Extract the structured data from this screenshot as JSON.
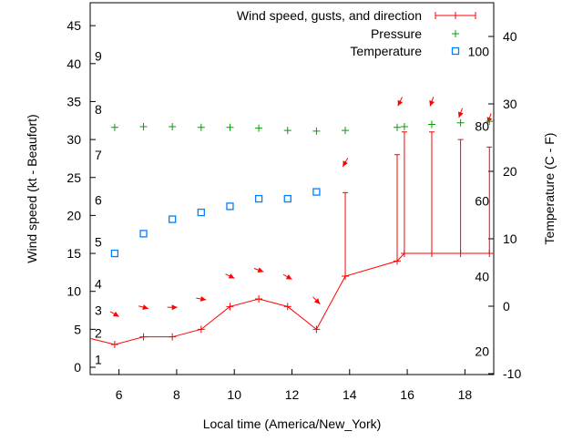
{
  "chart_data": {
    "type": "line",
    "title": "",
    "xlabel": "Local time (America/New_York)",
    "ylabel": "Wind speed (kt - Beaufort)",
    "y2label": "Temperature (C - F)",
    "xlim": [
      5,
      19
    ],
    "ylim": [
      -1,
      48
    ],
    "y2lim": [
      -10,
      44.5
    ],
    "xticks": [
      6,
      8,
      10,
      12,
      14,
      16,
      18
    ],
    "yticks": [
      0,
      5,
      10,
      15,
      20,
      25,
      30,
      35,
      40,
      45
    ],
    "y2ticks": [
      -10,
      0,
      10,
      20,
      30,
      40
    ],
    "beaufort_labels": [
      {
        "label": "1",
        "y": 1
      },
      {
        "label": "2",
        "y": 4.5
      },
      {
        "label": "3",
        "y": 7.5
      },
      {
        "label": "4",
        "y": 11
      },
      {
        "label": "5",
        "y": 16.5
      },
      {
        "label": "6",
        "y": 22
      },
      {
        "label": "7",
        "y": 28
      },
      {
        "label": "8",
        "y": 34
      },
      {
        "label": "9",
        "y": 41
      }
    ],
    "fahrenheit_labels": [
      {
        "label": "20",
        "y2": -6.7
      },
      {
        "label": "40",
        "y2": 4.4
      },
      {
        "label": "60",
        "y2": 15.6
      },
      {
        "label": "80",
        "y2": 26.7
      },
      {
        "label": "100",
        "y2": 37.8
      }
    ],
    "legend": {
      "position": "top-right",
      "entries": [
        "Wind speed, gusts, and direction",
        "Pressure",
        "Temperature"
      ]
    },
    "series": [
      {
        "name": "Wind speed, gusts, and direction",
        "color": "#ff0000",
        "x": [
          5,
          5.85,
          6.85,
          7.85,
          8.85,
          9.85,
          10.85,
          11.85,
          12.85,
          13.85,
          15.65,
          15.9,
          16.85,
          17.85,
          18.85,
          19
        ],
        "y": [
          3.8,
          3,
          4,
          4,
          5,
          8,
          9,
          8,
          5,
          12,
          14,
          15,
          15,
          15,
          15,
          15
        ],
        "gusts": [
          {
            "x": 13.85,
            "y": 23
          },
          {
            "x": 15.65,
            "y": 28
          },
          {
            "x": 15.9,
            "y": 31
          },
          {
            "x": 16.85,
            "y": 31
          },
          {
            "x": 17.85,
            "y": 30
          },
          {
            "x": 18.85,
            "y": 29
          }
        ],
        "directions": [
          {
            "x": 5.85,
            "y": 7,
            "to_deg": 120
          },
          {
            "x": 6.85,
            "y": 7.9,
            "to_deg": 105
          },
          {
            "x": 7.85,
            "y": 7.9,
            "to_deg": 90
          },
          {
            "x": 8.85,
            "y": 9,
            "to_deg": 100
          },
          {
            "x": 9.85,
            "y": 12,
            "to_deg": 115
          },
          {
            "x": 10.85,
            "y": 12.8,
            "to_deg": 110
          },
          {
            "x": 11.85,
            "y": 11.9,
            "to_deg": 120
          },
          {
            "x": 12.85,
            "y": 8.8,
            "to_deg": 135
          },
          {
            "x": 13.85,
            "y": 27,
            "to_deg": 210
          },
          {
            "x": 15.75,
            "y": 35,
            "to_deg": 205
          },
          {
            "x": 16.85,
            "y": 35,
            "to_deg": 200
          },
          {
            "x": 17.85,
            "y": 33.5,
            "to_deg": 200
          },
          {
            "x": 18.85,
            "y": 32.8,
            "to_deg": 200
          }
        ]
      },
      {
        "name": "Pressure",
        "color": "#00a000",
        "x": [
          5.85,
          6.85,
          7.85,
          8.85,
          9.85,
          10.85,
          11.85,
          12.85,
          13.85,
          15.65,
          15.9,
          16.85,
          17.85,
          18.85
        ],
        "y": [
          31.6,
          31.7,
          31.7,
          31.6,
          31.6,
          31.5,
          31.2,
          31.1,
          31.2,
          31.6,
          31.7,
          32.0,
          32.2,
          32.4
        ]
      },
      {
        "name": "Temperature",
        "color": "#0080ff",
        "x": [
          5.85,
          6.85,
          7.85,
          8.85,
          9.85,
          10.85,
          11.85,
          12.85
        ],
        "y": [
          15,
          17.6,
          19.5,
          20.4,
          21.2,
          22.2,
          22.2,
          23.1
        ]
      }
    ]
  }
}
